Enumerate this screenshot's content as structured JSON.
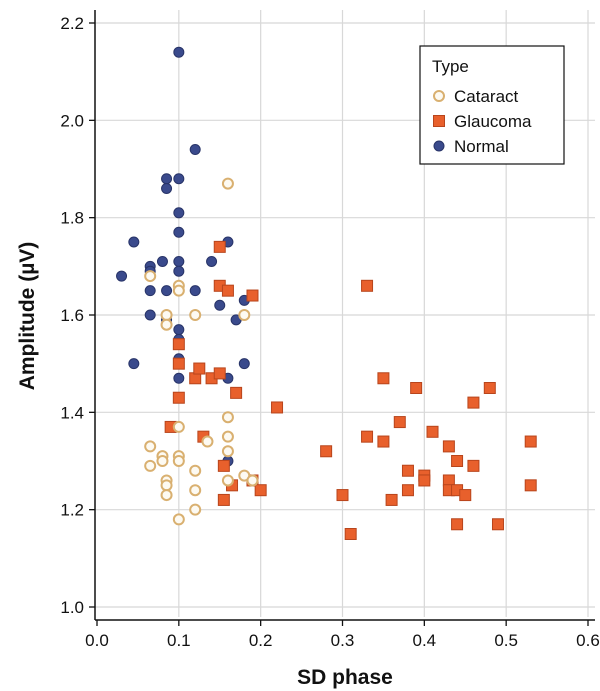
{
  "chart_data": {
    "type": "scatter",
    "xlabel": "SD phase",
    "ylabel": "Amplitude (µV)",
    "xlim": [
      0.0,
      0.6
    ],
    "ylim": [
      1.0,
      2.2
    ],
    "xticks": [
      "0.0",
      "0.1",
      "0.2",
      "0.3",
      "0.4",
      "0.5",
      "0.6"
    ],
    "yticks": [
      "1.0",
      "1.2",
      "1.4",
      "1.6",
      "1.8",
      "2.0",
      "2.2"
    ],
    "grid": true,
    "legend": {
      "title": "Type",
      "placement": "top-right"
    },
    "series": [
      {
        "name": "Cataract",
        "marker": "open-circle",
        "color": "#d9b070",
        "points": [
          [
            0.065,
            1.68
          ],
          [
            0.065,
            1.33
          ],
          [
            0.065,
            1.29
          ],
          [
            0.08,
            1.31
          ],
          [
            0.08,
            1.3
          ],
          [
            0.085,
            1.26
          ],
          [
            0.085,
            1.25
          ],
          [
            0.085,
            1.23
          ],
          [
            0.085,
            1.6
          ],
          [
            0.085,
            1.58
          ],
          [
            0.1,
            1.66
          ],
          [
            0.1,
            1.65
          ],
          [
            0.1,
            1.37
          ],
          [
            0.1,
            1.31
          ],
          [
            0.1,
            1.3
          ],
          [
            0.1,
            1.18
          ],
          [
            0.12,
            1.6
          ],
          [
            0.12,
            1.28
          ],
          [
            0.12,
            1.24
          ],
          [
            0.12,
            1.2
          ],
          [
            0.135,
            1.34
          ],
          [
            0.16,
            1.87
          ],
          [
            0.16,
            1.39
          ],
          [
            0.16,
            1.35
          ],
          [
            0.16,
            1.32
          ],
          [
            0.16,
            1.26
          ],
          [
            0.18,
            1.6
          ],
          [
            0.18,
            1.27
          ],
          [
            0.19,
            1.26
          ]
        ]
      },
      {
        "name": "Glaucoma",
        "marker": "square",
        "color": "#e8602c",
        "points": [
          [
            0.09,
            1.37
          ],
          [
            0.1,
            1.54
          ],
          [
            0.1,
            1.5
          ],
          [
            0.1,
            1.43
          ],
          [
            0.12,
            1.47
          ],
          [
            0.125,
            1.49
          ],
          [
            0.13,
            1.35
          ],
          [
            0.14,
            1.47
          ],
          [
            0.15,
            1.74
          ],
          [
            0.15,
            1.66
          ],
          [
            0.15,
            1.48
          ],
          [
            0.155,
            1.29
          ],
          [
            0.155,
            1.22
          ],
          [
            0.16,
            1.65
          ],
          [
            0.165,
            1.25
          ],
          [
            0.17,
            1.44
          ],
          [
            0.19,
            1.64
          ],
          [
            0.19,
            1.26
          ],
          [
            0.2,
            1.24
          ],
          [
            0.22,
            1.41
          ],
          [
            0.28,
            1.32
          ],
          [
            0.3,
            1.23
          ],
          [
            0.31,
            1.15
          ],
          [
            0.33,
            1.66
          ],
          [
            0.33,
            1.35
          ],
          [
            0.35,
            1.47
          ],
          [
            0.35,
            1.34
          ],
          [
            0.36,
            1.22
          ],
          [
            0.37,
            1.38
          ],
          [
            0.38,
            1.28
          ],
          [
            0.38,
            1.24
          ],
          [
            0.39,
            1.45
          ],
          [
            0.4,
            1.27
          ],
          [
            0.4,
            1.26
          ],
          [
            0.41,
            1.36
          ],
          [
            0.43,
            1.33
          ],
          [
            0.43,
            1.26
          ],
          [
            0.43,
            1.24
          ],
          [
            0.44,
            1.3
          ],
          [
            0.44,
            1.24
          ],
          [
            0.44,
            1.17
          ],
          [
            0.45,
            1.23
          ],
          [
            0.46,
            1.42
          ],
          [
            0.46,
            1.29
          ],
          [
            0.48,
            1.45
          ],
          [
            0.49,
            1.17
          ],
          [
            0.53,
            1.34
          ],
          [
            0.53,
            1.25
          ]
        ]
      },
      {
        "name": "Normal",
        "marker": "filled-circle",
        "color": "#3a4a8c",
        "points": [
          [
            0.03,
            1.68
          ],
          [
            0.045,
            1.75
          ],
          [
            0.045,
            1.5
          ],
          [
            0.065,
            1.7
          ],
          [
            0.065,
            1.69
          ],
          [
            0.065,
            1.65
          ],
          [
            0.065,
            1.6
          ],
          [
            0.08,
            1.71
          ],
          [
            0.085,
            1.88
          ],
          [
            0.085,
            1.86
          ],
          [
            0.085,
            1.65
          ],
          [
            0.085,
            1.59
          ],
          [
            0.1,
            2.14
          ],
          [
            0.1,
            1.88
          ],
          [
            0.1,
            1.81
          ],
          [
            0.1,
            1.77
          ],
          [
            0.1,
            1.71
          ],
          [
            0.1,
            1.69
          ],
          [
            0.1,
            1.65
          ],
          [
            0.1,
            1.57
          ],
          [
            0.1,
            1.55
          ],
          [
            0.1,
            1.51
          ],
          [
            0.1,
            1.47
          ],
          [
            0.12,
            1.94
          ],
          [
            0.12,
            1.65
          ],
          [
            0.14,
            1.71
          ],
          [
            0.15,
            1.62
          ],
          [
            0.16,
            1.75
          ],
          [
            0.16,
            1.47
          ],
          [
            0.16,
            1.3
          ],
          [
            0.17,
            1.59
          ],
          [
            0.18,
            1.63
          ],
          [
            0.18,
            1.5
          ]
        ]
      }
    ]
  }
}
